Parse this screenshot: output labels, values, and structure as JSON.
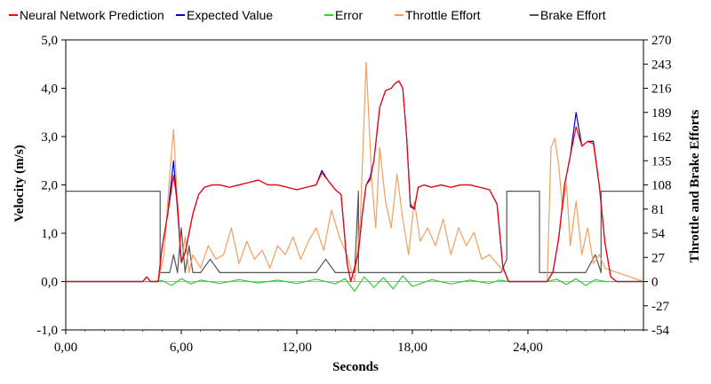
{
  "chart_data": {
    "type": "line",
    "title": "",
    "xlabel": "Seconds",
    "ylabel": "Velocity (m/s)",
    "y2label": "Throttle and Brake Efforts",
    "xlim": [
      0,
      30
    ],
    "ylim": [
      -1.0,
      5.0
    ],
    "y2lim": [
      -54,
      270
    ],
    "x_ticks": [
      "0,00",
      "6,00",
      "12,00",
      "18,00",
      "24,00"
    ],
    "x_tick_values": [
      0,
      6,
      12,
      18,
      24
    ],
    "y_ticks": [
      "-1,0",
      "0,0",
      "1,0",
      "2,0",
      "3,0",
      "4,0",
      "5,0"
    ],
    "y_tick_values": [
      -1,
      0,
      1,
      2,
      3,
      4,
      5
    ],
    "y2_ticks": [
      "-54",
      "-27",
      "0",
      "27",
      "54",
      "81",
      "108",
      "135",
      "162",
      "189",
      "216",
      "243",
      "270"
    ],
    "y2_tick_values": [
      -54,
      -27,
      0,
      27,
      54,
      81,
      108,
      135,
      162,
      189,
      216,
      243,
      270
    ],
    "grid": false,
    "legend_position": "top",
    "series": [
      {
        "name": "Neural Network Prediction",
        "axis": "left",
        "color": "#ff0000",
        "x": [
          0,
          4.0,
          4.2,
          4.4,
          4.8,
          5.0,
          5.3,
          5.6,
          5.8,
          6.0,
          6.2,
          6.4,
          6.6,
          6.9,
          7.2,
          7.6,
          8.0,
          8.5,
          9.0,
          9.5,
          10.0,
          10.5,
          11.0,
          11.5,
          12.0,
          12.5,
          13.0,
          13.3,
          13.6,
          14.0,
          14.3,
          14.6,
          14.8,
          15.0,
          15.2,
          15.4,
          15.6,
          15.8,
          16.0,
          16.3,
          16.6,
          16.9,
          17.1,
          17.3,
          17.5,
          17.7,
          17.9,
          18.1,
          18.3,
          18.6,
          19.0,
          19.5,
          20.0,
          20.5,
          21.0,
          21.5,
          22.0,
          22.4,
          22.7,
          23.0,
          23.5,
          24.0,
          24.5,
          25.0,
          25.3,
          25.6,
          25.9,
          26.2,
          26.5,
          26.8,
          27.1,
          27.4,
          27.7,
          28.0,
          28.3,
          28.6,
          29.0,
          30.0
        ],
        "y": [
          0.0,
          0.0,
          0.1,
          0.0,
          0.0,
          0.7,
          1.4,
          2.2,
          1.6,
          0.4,
          0.6,
          1.0,
          1.4,
          1.8,
          1.95,
          2.0,
          2.0,
          1.95,
          2.0,
          2.05,
          2.1,
          2.0,
          2.0,
          1.95,
          1.9,
          1.95,
          2.0,
          2.25,
          2.1,
          1.9,
          1.8,
          0.4,
          0.0,
          0.3,
          0.6,
          1.4,
          2.0,
          2.1,
          2.5,
          3.6,
          3.95,
          4.0,
          4.1,
          4.15,
          4.0,
          3.0,
          1.6,
          1.5,
          1.95,
          2.0,
          1.95,
          2.0,
          1.95,
          2.0,
          2.0,
          1.95,
          1.9,
          1.6,
          0.3,
          0.0,
          0.0,
          0.0,
          0.0,
          0.0,
          0.2,
          0.9,
          2.0,
          2.6,
          3.2,
          2.8,
          2.9,
          2.85,
          2.0,
          0.8,
          0.1,
          0.0,
          0.0,
          0.0
        ]
      },
      {
        "name": "Expected Value",
        "axis": "left",
        "color": "#0000cc",
        "x": [
          0,
          4.0,
          4.2,
          4.4,
          4.8,
          5.0,
          5.3,
          5.6,
          5.8,
          6.0,
          6.2,
          6.4,
          6.6,
          6.9,
          7.2,
          7.6,
          8.0,
          8.5,
          9.0,
          9.5,
          10.0,
          10.5,
          11.0,
          11.5,
          12.0,
          12.5,
          13.0,
          13.3,
          13.6,
          14.0,
          14.3,
          14.6,
          14.8,
          15.0,
          15.2,
          15.4,
          15.6,
          15.8,
          16.0,
          16.3,
          16.6,
          16.9,
          17.1,
          17.3,
          17.5,
          17.7,
          17.9,
          18.1,
          18.3,
          18.6,
          19.0,
          19.5,
          20.0,
          20.5,
          21.0,
          21.5,
          22.0,
          22.4,
          22.7,
          23.0,
          23.5,
          24.0,
          24.5,
          25.0,
          25.3,
          25.6,
          25.9,
          26.2,
          26.5,
          26.8,
          27.1,
          27.4,
          27.7,
          28.0,
          28.3,
          28.6,
          29.0,
          30.0
        ],
        "y": [
          0.0,
          0.0,
          0.1,
          0.0,
          0.0,
          0.7,
          1.4,
          2.5,
          1.5,
          0.4,
          0.6,
          1.0,
          1.4,
          1.8,
          1.95,
          2.0,
          2.0,
          1.95,
          2.0,
          2.05,
          2.1,
          2.0,
          2.0,
          1.95,
          1.9,
          1.95,
          2.0,
          2.3,
          2.1,
          1.9,
          1.8,
          0.4,
          0.0,
          0.3,
          0.6,
          1.4,
          2.0,
          2.15,
          2.5,
          3.6,
          3.95,
          4.0,
          4.1,
          4.15,
          4.0,
          3.0,
          1.55,
          1.5,
          1.95,
          2.0,
          1.95,
          2.0,
          1.95,
          2.0,
          2.0,
          1.95,
          1.9,
          1.6,
          0.3,
          0.0,
          0.0,
          0.0,
          0.0,
          0.0,
          0.2,
          0.9,
          2.0,
          2.6,
          3.5,
          2.8,
          2.9,
          2.9,
          2.0,
          0.8,
          0.1,
          0.0,
          0.0,
          0.0
        ]
      },
      {
        "name": "Error",
        "axis": "left",
        "color": "#33cc33",
        "x": [
          0,
          4.5,
          5.0,
          5.5,
          6.0,
          6.5,
          7.0,
          8.0,
          9.0,
          10.0,
          11.0,
          12.0,
          13.0,
          14.0,
          14.5,
          15.0,
          15.5,
          16.0,
          16.5,
          17.0,
          17.5,
          18.0,
          19.0,
          20.0,
          21.0,
          22.0,
          22.5,
          23.0,
          24.0,
          25.0,
          25.5,
          26.0,
          26.5,
          27.0,
          27.5,
          28.0,
          30.0
        ],
        "y": [
          0.0,
          0.0,
          0.02,
          -0.08,
          0.06,
          -0.05,
          0.03,
          -0.04,
          0.04,
          -0.03,
          0.03,
          -0.04,
          0.05,
          -0.05,
          0.06,
          -0.2,
          0.1,
          -0.12,
          0.08,
          -0.15,
          0.12,
          -0.1,
          0.04,
          -0.05,
          0.03,
          -0.04,
          0.03,
          0.0,
          0.0,
          0.0,
          0.05,
          -0.06,
          0.06,
          -0.08,
          0.04,
          0.0,
          0.0
        ]
      },
      {
        "name": "Throttle Effort",
        "axis": "right",
        "color": "#f0a060",
        "x": [
          0,
          4.8,
          5.1,
          5.4,
          5.6,
          5.8,
          6.0,
          6.2,
          6.4,
          6.6,
          7.0,
          7.4,
          7.8,
          8.2,
          8.6,
          9.0,
          9.4,
          9.8,
          10.2,
          10.6,
          11.0,
          11.4,
          11.8,
          12.2,
          12.6,
          13.0,
          13.4,
          13.8,
          14.2,
          14.6,
          15.0,
          15.3,
          15.6,
          15.9,
          16.1,
          16.3,
          16.6,
          16.9,
          17.2,
          17.5,
          17.8,
          18.1,
          18.4,
          18.8,
          19.2,
          19.6,
          20.0,
          20.4,
          20.8,
          21.2,
          21.6,
          22.0,
          22.4,
          22.8,
          23.0,
          25.0,
          25.2,
          25.4,
          25.6,
          25.8,
          26.0,
          26.2,
          26.5,
          26.8,
          27.1,
          27.4,
          27.7,
          28.0,
          30.0
        ],
        "y": [
          0,
          0,
          30,
          120,
          170,
          90,
          20,
          50,
          10,
          30,
          15,
          40,
          25,
          30,
          60,
          20,
          45,
          25,
          35,
          15,
          40,
          30,
          50,
          25,
          45,
          60,
          35,
          80,
          50,
          30,
          0,
          70,
          245,
          110,
          60,
          150,
          90,
          60,
          120,
          70,
          30,
          90,
          45,
          60,
          40,
          70,
          30,
          60,
          40,
          55,
          25,
          30,
          20,
          10,
          0,
          0,
          150,
          160,
          130,
          80,
          110,
          40,
          90,
          30,
          60,
          20,
          30,
          15,
          0
        ]
      },
      {
        "name": "Brake Effort",
        "axis": "right",
        "color": "#555555",
        "x": [
          0,
          4.9,
          4.9,
          5.4,
          5.6,
          5.8,
          6.0,
          6.2,
          6.4,
          6.6,
          7.0,
          7.5,
          8.0,
          9.0,
          10.0,
          11.0,
          12.0,
          13.0,
          13.5,
          14.0,
          14.5,
          15.0,
          15.2,
          15.2,
          15.6,
          16.0,
          17.0,
          18.0,
          19.0,
          20.0,
          21.0,
          22.0,
          22.6,
          22.9,
          22.9,
          24.6,
          24.6,
          25.0,
          26.0,
          27.0,
          27.5,
          27.8,
          27.8,
          30.0
        ],
        "y": [
          101,
          101,
          10,
          10,
          30,
          10,
          60,
          10,
          40,
          10,
          10,
          25,
          10,
          10,
          10,
          10,
          10,
          10,
          25,
          10,
          10,
          10,
          101,
          10,
          10,
          10,
          10,
          10,
          10,
          10,
          10,
          10,
          10,
          25,
          101,
          101,
          10,
          10,
          10,
          10,
          30,
          10,
          101,
          101
        ]
      }
    ]
  }
}
